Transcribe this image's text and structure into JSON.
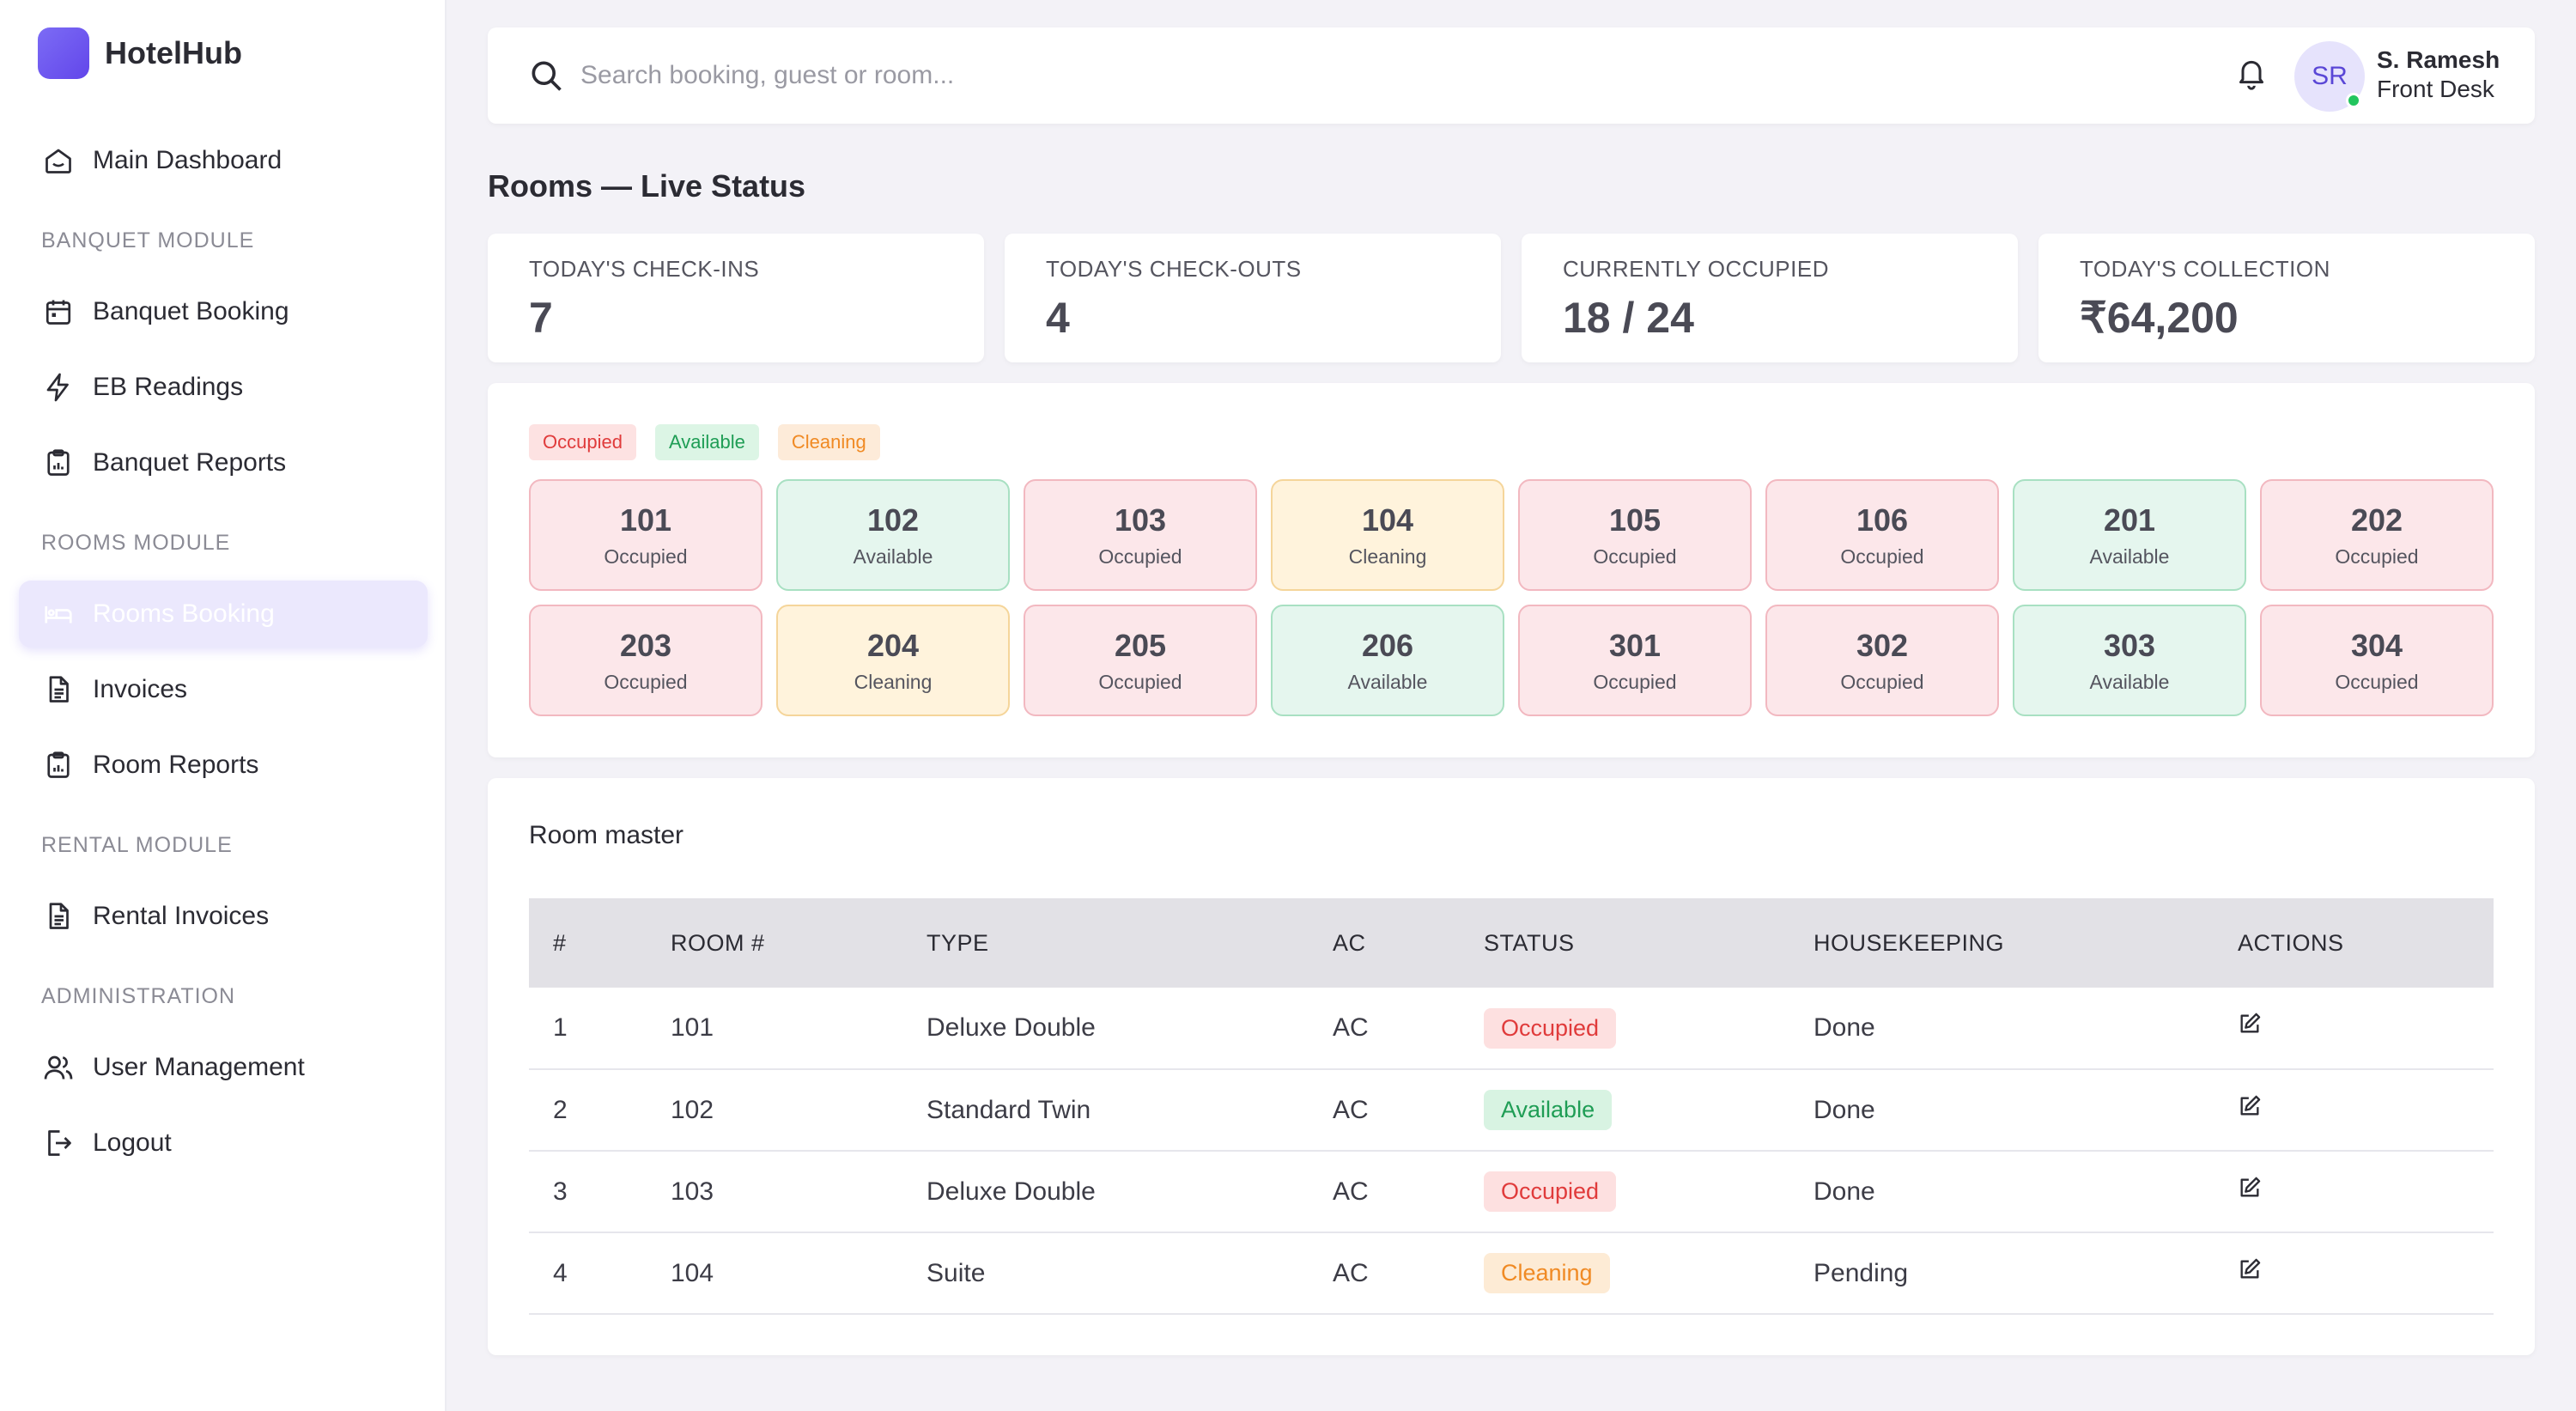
{
  "brand": {
    "name": "HotelHub"
  },
  "sidebar": {
    "main": "Main Dashboard",
    "sections": {
      "banquet": "BANQUET MODULE",
      "rooms": "ROOMS MODULE",
      "rental": "RENTAL MODULE",
      "admin": "ADMINISTRATION"
    },
    "items": {
      "banquet_booking": "Banquet Booking",
      "eb_readings": "EB Readings",
      "banquet_reports": "Banquet Reports",
      "rooms_booking": "Rooms Booking",
      "invoices": "Invoices",
      "room_reports": "Room Reports",
      "rental_invoices": "Rental Invoices",
      "user_management": "User Management",
      "logout": "Logout"
    }
  },
  "topbar": {
    "search_placeholder": "Search booking, guest or room...",
    "user_initials": "SR",
    "user_name": "S. Ramesh",
    "user_role": "Front Desk"
  },
  "page_title": "Rooms — Live Status",
  "stats": [
    {
      "label": "TODAY'S CHECK-INS",
      "value": "7"
    },
    {
      "label": "TODAY'S CHECK-OUTS",
      "value": "4"
    },
    {
      "label": "CURRENTLY OCCUPIED",
      "value": "18 / 24"
    },
    {
      "label": "TODAY'S COLLECTION",
      "value": "₹64,200"
    }
  ],
  "legend": {
    "occupied": "Occupied",
    "available": "Available",
    "cleaning": "Cleaning"
  },
  "rooms": [
    {
      "number": "101",
      "status": "Occupied",
      "kind": "occupied"
    },
    {
      "number": "102",
      "status": "Available",
      "kind": "available"
    },
    {
      "number": "103",
      "status": "Occupied",
      "kind": "occupied"
    },
    {
      "number": "104",
      "status": "Cleaning",
      "kind": "cleaning"
    },
    {
      "number": "105",
      "status": "Occupied",
      "kind": "occupied"
    },
    {
      "number": "106",
      "status": "Occupied",
      "kind": "occupied"
    },
    {
      "number": "201",
      "status": "Available",
      "kind": "available"
    },
    {
      "number": "202",
      "status": "Occupied",
      "kind": "occupied"
    },
    {
      "number": "203",
      "status": "Occupied",
      "kind": "occupied"
    },
    {
      "number": "204",
      "status": "Cleaning",
      "kind": "cleaning"
    },
    {
      "number": "205",
      "status": "Occupied",
      "kind": "occupied"
    },
    {
      "number": "206",
      "status": "Available",
      "kind": "available"
    },
    {
      "number": "301",
      "status": "Occupied",
      "kind": "occupied"
    },
    {
      "number": "302",
      "status": "Occupied",
      "kind": "occupied"
    },
    {
      "number": "303",
      "status": "Available",
      "kind": "available"
    },
    {
      "number": "304",
      "status": "Occupied",
      "kind": "occupied"
    }
  ],
  "master": {
    "title": "Room master",
    "columns": [
      "#",
      "ROOM #",
      "TYPE",
      "AC",
      "STATUS",
      "HOUSEKEEPING",
      "ACTIONS"
    ],
    "rows": [
      {
        "idx": "1",
        "room": "101",
        "type": "Deluxe Double",
        "ac": "AC",
        "status": "Occupied",
        "kind": "occupied",
        "housekeeping": "Done"
      },
      {
        "idx": "2",
        "room": "102",
        "type": "Standard Twin",
        "ac": "AC",
        "status": "Available",
        "kind": "available",
        "housekeeping": "Done"
      },
      {
        "idx": "3",
        "room": "103",
        "type": "Deluxe Double",
        "ac": "AC",
        "status": "Occupied",
        "kind": "occupied",
        "housekeeping": "Done"
      },
      {
        "idx": "4",
        "room": "104",
        "type": "Suite",
        "ac": "AC",
        "status": "Cleaning",
        "kind": "cleaning",
        "housekeeping": "Pending"
      }
    ]
  },
  "colors": {
    "accent": "#6246ea",
    "occupied": "#e03b3b",
    "available": "#1f9d55",
    "cleaning": "#f08a24"
  }
}
